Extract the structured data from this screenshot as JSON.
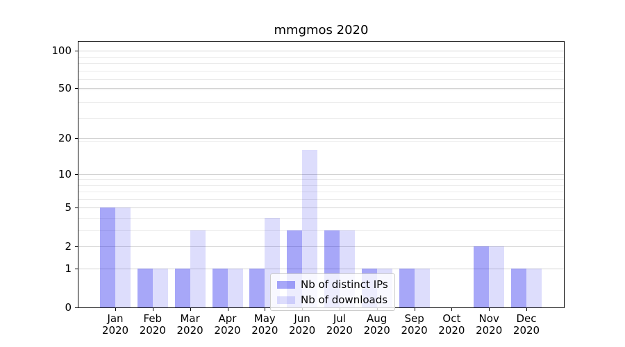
{
  "chart_data": {
    "type": "bar",
    "title": "mmgmos 2020",
    "categories": [
      "Jan",
      "Feb",
      "Mar",
      "Apr",
      "May",
      "Jun",
      "Jul",
      "Aug",
      "Sep",
      "Oct",
      "Nov",
      "Dec"
    ],
    "category_year": "2020",
    "series": [
      {
        "name": "Nb of distinct IPs",
        "color": "rgba(0,0,235,0.345)",
        "values": [
          5,
          1,
          1,
          1,
          1,
          3,
          3,
          1,
          1,
          0,
          2,
          1
        ]
      },
      {
        "name": "Nb of downloads",
        "color": "rgba(0,0,235,0.135)",
        "values": [
          5,
          1,
          3,
          1,
          4,
          16,
          3,
          1,
          1,
          0,
          2,
          1
        ]
      }
    ],
    "y_axis": {
      "ticks": [
        0,
        1,
        2,
        5,
        10,
        20,
        50,
        100
      ],
      "scale": "log10(value+1)",
      "range": [
        0,
        117
      ],
      "grid_major": true,
      "grid_minor": true
    },
    "x_axis": {
      "tick_labels": [
        "Jan 2020",
        "Feb 2020",
        "Mar 2020",
        "Apr 2020",
        "May 2020",
        "Jun 2020",
        "Jul 2020",
        "Aug 2020",
        "Sep 2020",
        "Oct 2020",
        "Nov 2020",
        "Dec 2020"
      ]
    },
    "legend": {
      "position": "lower center",
      "items": [
        "Nb of distinct IPs",
        "Nb of downloads"
      ]
    },
    "colors": {
      "bar_distinct_ips": "#a7a7f6",
      "bar_downloads": "#dcdcfb",
      "grid_major": "#d3d3d3",
      "grid_minor": "#ebebeb",
      "axis": "#000000"
    }
  }
}
